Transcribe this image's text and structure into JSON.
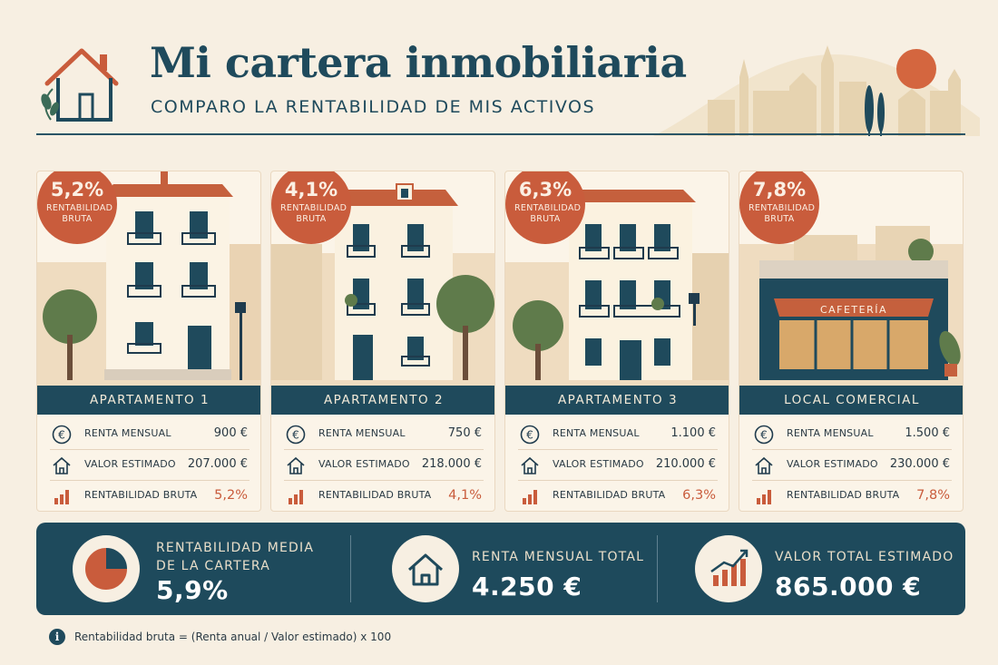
{
  "header": {
    "title": "Mi cartera inmobiliaria",
    "subtitle": "COMPARO LA RENTABILIDAD DE MIS ACTIVOS"
  },
  "colors": {
    "navy": "#1f4a5c",
    "terracotta": "#c95c3c",
    "cream": "#f7efe2"
  },
  "properties": [
    {
      "badge_value": "5,2%",
      "badge_label": "RENTABILIDAD BRUTA",
      "name": "APARTAMENTO 1",
      "rows": [
        {
          "icon": "euro-icon",
          "label": "RENTA MENSUAL",
          "value": "900 €"
        },
        {
          "icon": "house-icon",
          "label": "VALOR ESTIMADO",
          "value": "207.000 €"
        },
        {
          "icon": "bar-chart-icon",
          "label": "RENTABILIDAD BRUTA",
          "value": "5,2%"
        }
      ]
    },
    {
      "badge_value": "4,1%",
      "badge_label": "RENTABILIDAD BRUTA",
      "name": "APARTAMENTO 2",
      "rows": [
        {
          "icon": "euro-icon",
          "label": "RENTA MENSUAL",
          "value": "750 €"
        },
        {
          "icon": "house-icon",
          "label": "VALOR ESTIMADO",
          "value": "218.000 €"
        },
        {
          "icon": "bar-chart-icon",
          "label": "RENTABILIDAD BRUTA",
          "value": "4,1%"
        }
      ]
    },
    {
      "badge_value": "6,3%",
      "badge_label": "RENTABILIDAD BRUTA",
      "name": "APARTAMENTO 3",
      "rows": [
        {
          "icon": "euro-icon",
          "label": "RENTA MENSUAL",
          "value": "1.100 €"
        },
        {
          "icon": "house-icon",
          "label": "VALOR ESTIMADO",
          "value": "210.000 €"
        },
        {
          "icon": "bar-chart-icon",
          "label": "RENTABILIDAD BRUTA",
          "value": "6,3%"
        }
      ]
    },
    {
      "badge_value": "7,8%",
      "badge_label": "RENTABILIDAD BRUTA",
      "name": "LOCAL COMERCIAL",
      "shop_sign": "CAFETERÍA",
      "rows": [
        {
          "icon": "euro-icon",
          "label": "RENTA MENSUAL",
          "value": "1.500 €"
        },
        {
          "icon": "house-icon",
          "label": "VALOR ESTIMADO",
          "value": "230.000 €"
        },
        {
          "icon": "bar-chart-icon",
          "label": "RENTABILIDAD BRUTA",
          "value": "7,8%"
        }
      ]
    }
  ],
  "summary": {
    "average": {
      "icon": "pie-chart-icon",
      "label_line1": "RENTABILIDAD MEDIA",
      "label_line2": "DE LA CARTERA",
      "value": "5,9%"
    },
    "rent": {
      "icon": "house-icon",
      "label": "RENTA MENSUAL TOTAL",
      "value": "4.250 €"
    },
    "total": {
      "icon": "growth-chart-icon",
      "label": "VALOR TOTAL ESTIMADO",
      "value": "865.000 €"
    }
  },
  "footnote": {
    "icon": "info-icon",
    "text": "Rentabilidad bruta = (Renta anual / Valor estimado) x 100"
  }
}
